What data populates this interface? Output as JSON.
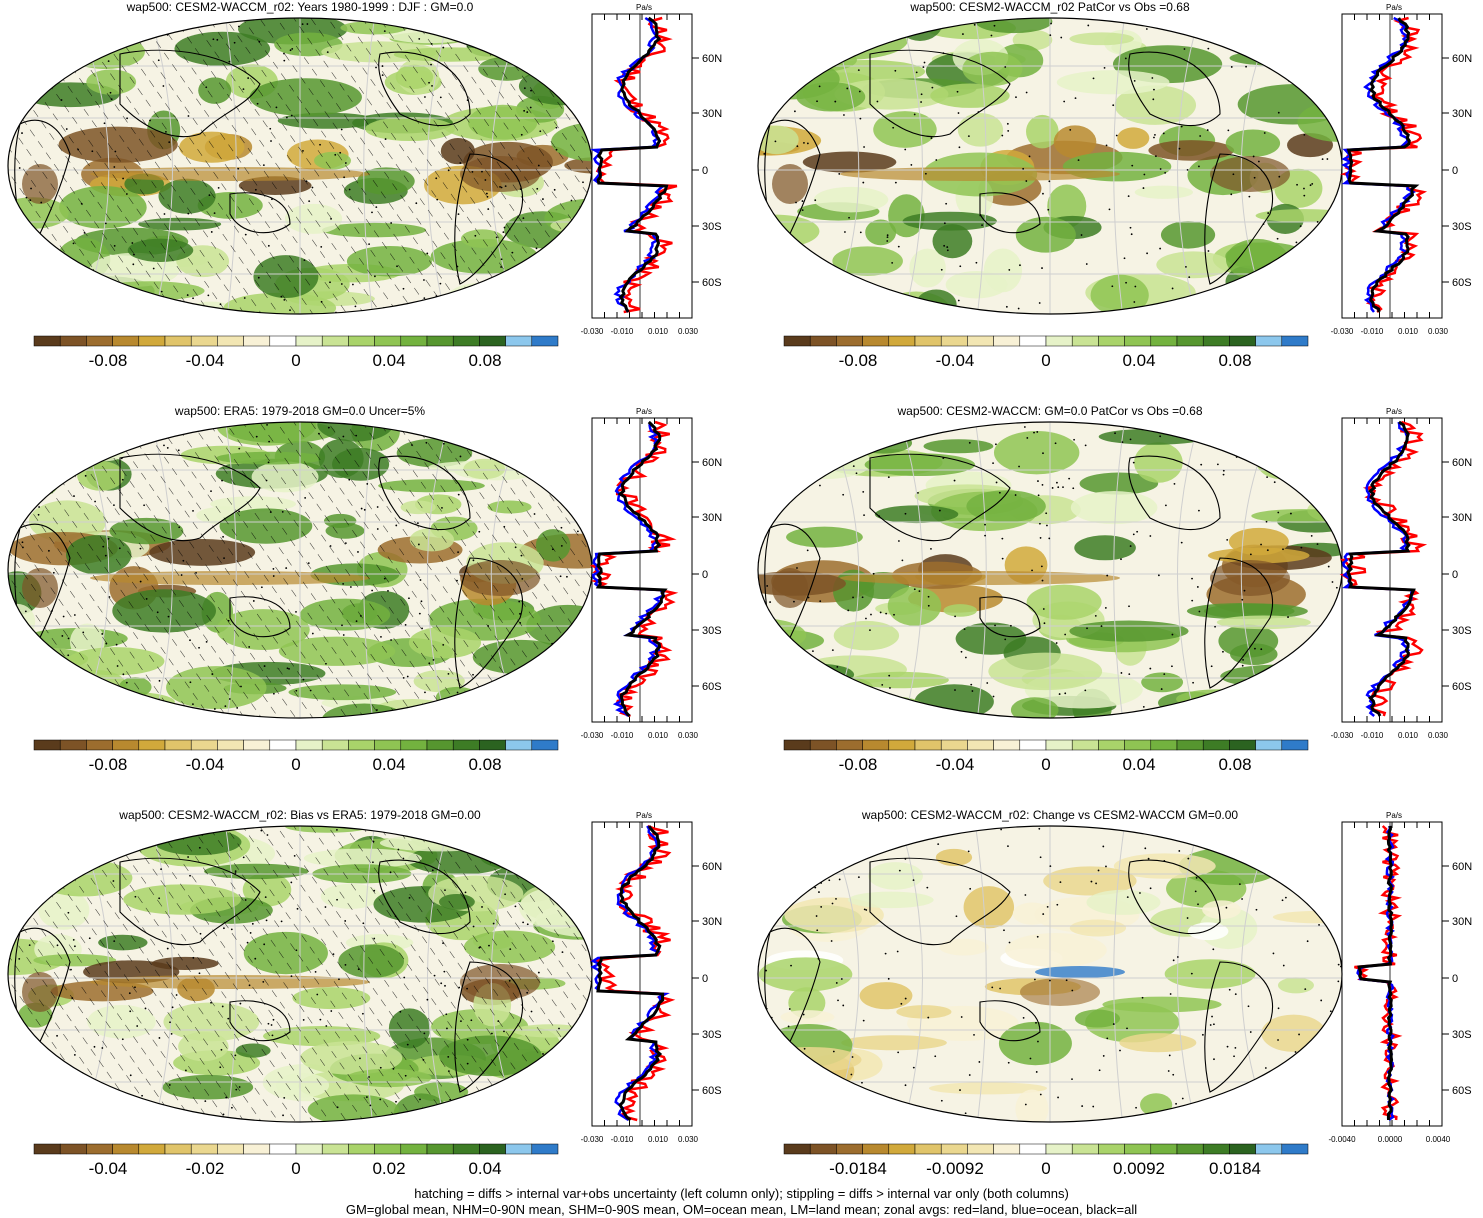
{
  "panels": [
    {
      "title": "wap500: CESM2-WACCM_r02: Years 1980-1999 : DJF : GM=0.0",
      "hatch": true,
      "seed": 1,
      "cbar_labels": [
        "-0.08",
        "-0.04",
        "0",
        "0.04",
        "0.08"
      ],
      "zonal_ticks": [
        "-0.030",
        "-0.010",
        "0.010",
        "0.030"
      ],
      "zonal_unit": "Pa/s",
      "lat_labels": [
        "60N",
        "30N",
        "0",
        "30S",
        "60S"
      ]
    },
    {
      "title": "wap500: CESM2-WACCM_r02 PatCor vs Obs =0.68",
      "hatch": false,
      "seed": 2,
      "cbar_labels": [
        "-0.08",
        "-0.04",
        "0",
        "0.04",
        "0.08"
      ],
      "zonal_ticks": [
        "-0.030",
        "-0.010",
        "0.010",
        "0.030"
      ],
      "zonal_unit": "Pa/s",
      "lat_labels": [
        "60N",
        "30N",
        "0",
        "30S",
        "60S"
      ]
    },
    {
      "title": "wap500: ERA5: 1979-2018 GM=0.0 Uncer=5%",
      "hatch": true,
      "seed": 3,
      "cbar_labels": [
        "-0.08",
        "-0.04",
        "0",
        "0.04",
        "0.08"
      ],
      "zonal_ticks": [
        "-0.030",
        "-0.010",
        "0.010",
        "0.030"
      ],
      "zonal_unit": "Pa/s",
      "lat_labels": [
        "60N",
        "30N",
        "0",
        "30S",
        "60S"
      ]
    },
    {
      "title": "wap500: CESM2-WACCM: GM=0.0 PatCor vs Obs =0.68",
      "hatch": false,
      "seed": 4,
      "cbar_labels": [
        "-0.08",
        "-0.04",
        "0",
        "0.04",
        "0.08"
      ],
      "zonal_ticks": [
        "-0.030",
        "-0.010",
        "0.010",
        "0.030"
      ],
      "zonal_unit": "Pa/s",
      "lat_labels": [
        "60N",
        "30N",
        "0",
        "30S",
        "60S"
      ]
    },
    {
      "title": "wap500: CESM2-WACCM_r02: Bias vs ERA5: 1979-2018 GM=0.00",
      "hatch": true,
      "seed": 5,
      "cbar_labels": [
        "-0.04",
        "-0.02",
        "0",
        "0.02",
        "0.04"
      ],
      "zonal_ticks": [
        "-0.030",
        "-0.010",
        "0.010",
        "0.030"
      ],
      "zonal_unit": "Pa/s",
      "lat_labels": [
        "60N",
        "30N",
        "0",
        "30S",
        "60S"
      ]
    },
    {
      "title": "wap500: CESM2-WACCM_r02: Change vs CESM2-WACCM GM=0.00",
      "hatch": false,
      "seed": 6,
      "cbar_labels": [
        "-0.0184",
        "-0.0092",
        "0",
        "0.0092",
        "0.0184"
      ],
      "zonal_ticks": [
        "-0.0040",
        "0.0000",
        "0.0040"
      ],
      "zonal_unit": "Pa/s",
      "lat_labels": [
        "60N",
        "30N",
        "0",
        "30S",
        "60S"
      ]
    }
  ],
  "colors": {
    "palette": [
      "#5a3b1c",
      "#7d5326",
      "#9c6d2e",
      "#b8892f",
      "#d1a93b",
      "#e0c46a",
      "#ead78f",
      "#f2e6b3",
      "#f8f1d6",
      "#ffffff",
      "#e6f2c8",
      "#c9e394",
      "#a9d36a",
      "#8fc453",
      "#73b23f",
      "#56962f",
      "#3d7c25",
      "#2b6320",
      "#8cc7ec",
      "#2f7bc9"
    ],
    "land": "#ff0000",
    "ocean": "#0000ff",
    "all": "#000000"
  },
  "footer": {
    "line1": "hatching = diffs > internal var+obs uncertainty (left column only); stippling = diffs > internal var only (both columns)",
    "line2": "GM=global mean, NHM=0-90N mean, SHM=0-90S mean, OM=ocean mean, LM=land mean; zonal avgs: red=land, blue=ocean, black=all"
  }
}
